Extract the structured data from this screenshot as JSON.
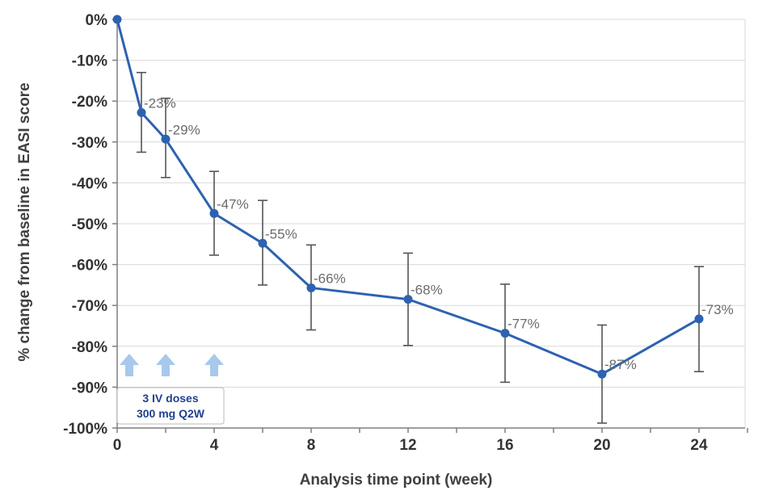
{
  "chart_data": {
    "type": "line",
    "title": "",
    "xlabel": "Analysis time point (week)",
    "ylabel": "% change from baseline in EASI score",
    "xlim": [
      0,
      26
    ],
    "ylim": [
      -100,
      0
    ],
    "x_ticks": [
      0,
      4,
      8,
      12,
      16,
      20,
      24
    ],
    "y_ticks": [
      0,
      -10,
      -20,
      -30,
      -40,
      -50,
      -60,
      -70,
      -80,
      -90,
      -100
    ],
    "y_tick_labels": [
      "0%",
      "-10%",
      "-20%",
      "-30%",
      "-40%",
      "-50%",
      "-60%",
      "-70%",
      "-80%",
      "-90%",
      "-100%"
    ],
    "grid": true,
    "series": [
      {
        "name": "EASI change",
        "color": "#2e62b0",
        "points": [
          {
            "x": 0,
            "y": 0,
            "err_low": 0,
            "err_high": 0,
            "label": ""
          },
          {
            "x": 1,
            "y": -22.8,
            "err_low": -32.5,
            "err_high": -13,
            "label": "-23%"
          },
          {
            "x": 2,
            "y": -29.3,
            "err_low": -38.7,
            "err_high": -19.3,
            "label": "-29%"
          },
          {
            "x": 4,
            "y": -47.5,
            "err_low": -57.7,
            "err_high": -37.2,
            "label": "-47%"
          },
          {
            "x": 6,
            "y": -54.8,
            "err_low": -65,
            "err_high": -44.3,
            "label": "-55%"
          },
          {
            "x": 8,
            "y": -65.7,
            "err_low": -76,
            "err_high": -55.2,
            "label": "-66%"
          },
          {
            "x": 12,
            "y": -68.5,
            "err_low": -79.8,
            "err_high": -57.2,
            "label": "-68%"
          },
          {
            "x": 16,
            "y": -76.8,
            "err_low": -88.8,
            "err_high": -64.8,
            "label": "-77%"
          },
          {
            "x": 20,
            "y": -86.8,
            "err_low": -98.8,
            "err_high": -74.8,
            "label": "-87%"
          },
          {
            "x": 24,
            "y": -73.3,
            "err_low": -86.2,
            "err_high": -60.5,
            "label": "-73%"
          }
        ]
      }
    ],
    "dose_arrows_x": [
      0.5,
      2,
      4
    ],
    "annotation": {
      "line1": "3 IV doses",
      "line2": "300 mg Q2W"
    }
  }
}
